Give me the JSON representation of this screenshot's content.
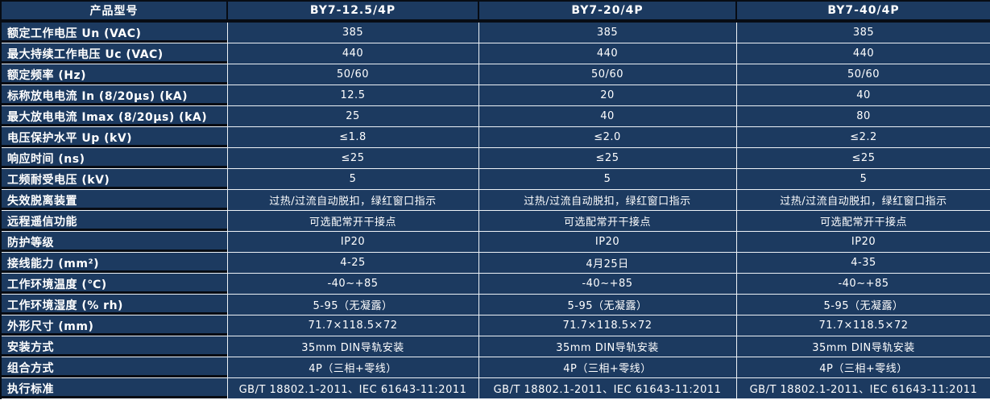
{
  "colors": {
    "cell_background": "#1C3A60",
    "grid_line_light": "#EDF2F7",
    "border_dark": "#070C14",
    "text": "#FFFFFF"
  },
  "table": {
    "header": {
      "col0": "产品型号",
      "models": [
        "BY7-12.5/4P",
        "BY7-20/4P",
        "BY7-40/4P"
      ]
    },
    "rows": [
      {
        "label": "额定工作电压 Un (VAC)",
        "values": [
          "385",
          "385",
          "385"
        ]
      },
      {
        "label": "最大持续工作电压 Uc (VAC)",
        "values": [
          "440",
          "440",
          "440"
        ]
      },
      {
        "label": "额定频率 (Hz)",
        "values": [
          "50/60",
          "50/60",
          "50/60"
        ]
      },
      {
        "label": "标称放电电流 In (8/20μs) (kA)",
        "values": [
          "12.5",
          "20",
          "40"
        ]
      },
      {
        "label": "最大放电电流 Imax (8/20μs) (kA)",
        "values": [
          "25",
          "40",
          "80"
        ]
      },
      {
        "label": "电压保护水平 Up (kV)",
        "values": [
          "≤1.8",
          "≤2.0",
          "≤2.2"
        ]
      },
      {
        "label": "响应时间 (ns)",
        "values": [
          "≤25",
          "≤25",
          "≤25"
        ]
      },
      {
        "label": "工频耐受电压 (kV)",
        "values": [
          "5",
          "5",
          "5"
        ]
      },
      {
        "label": "失效脱离装置",
        "values": [
          "过热/过流自动脱扣，绿红窗口指示",
          "过热/过流自动脱扣，绿红窗口指示",
          "过热/过流自动脱扣，绿红窗口指示"
        ]
      },
      {
        "label": "远程遥信功能",
        "values": [
          "可选配常开干接点",
          "可选配常开干接点",
          "可选配常开干接点"
        ]
      },
      {
        "label": "防护等级",
        "values": [
          "IP20",
          "IP20",
          "IP20"
        ]
      },
      {
        "label": "接线能力 (mm²)",
        "values": [
          "4-25",
          "4月25日",
          "4-35"
        ]
      },
      {
        "label": "工作环境温度 (℃)",
        "values": [
          "-40~+85",
          "-40~+85",
          "-40~+85"
        ]
      },
      {
        "label": "工作环境湿度 (% rh)",
        "values": [
          "5-95（无凝露）",
          "5-95（无凝露）",
          "5-95（无凝露）"
        ]
      },
      {
        "label": "外形尺寸 (mm)",
        "values": [
          "71.7×118.5×72",
          "71.7×118.5×72",
          "71.7×118.5×72"
        ]
      },
      {
        "label": "安装方式",
        "values": [
          "35mm DIN导轨安装",
          "35mm DIN导轨安装",
          "35mm DIN导轨安装"
        ]
      },
      {
        "label": "组合方式",
        "values": [
          "4P（三相+零线）",
          "4P（三相+零线）",
          "4P（三相+零线）"
        ]
      },
      {
        "label": "执行标准",
        "values": [
          "GB/T 18802.1-2011、IEC 61643-11:2011",
          "GB/T 18802.1-2011、IEC 61643-11:2011",
          "GB/T 18802.1-2011、IEC 61643-11:2011"
        ]
      }
    ]
  }
}
